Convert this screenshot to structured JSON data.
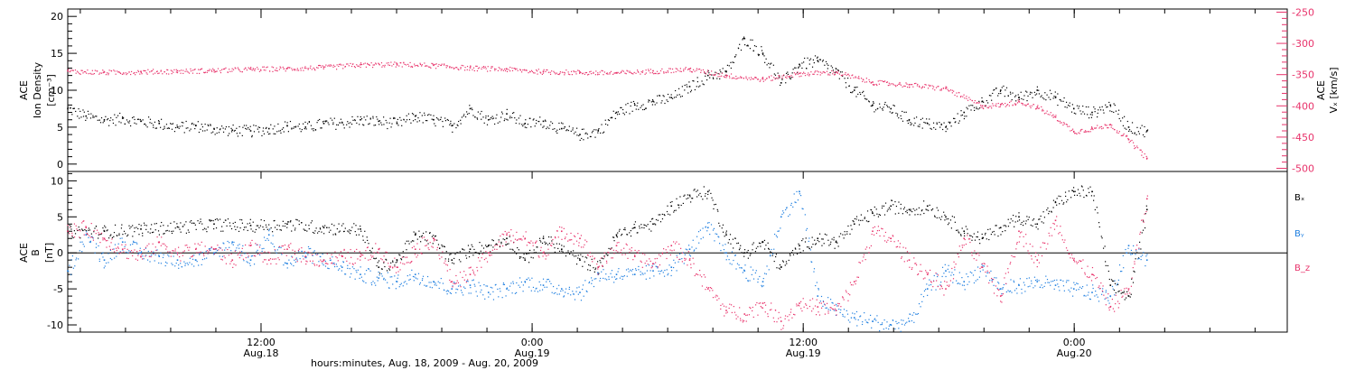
{
  "chart_data": [
    {
      "type": "scatter",
      "panel": "top",
      "ylabel_left": [
        "ACE",
        "Ion Density",
        "[cm⁻³]"
      ],
      "ylabel_right": [
        "ACE",
        "Vₓ [km/s]"
      ],
      "ylim_left": [
        -1,
        21
      ],
      "yticks_left": [
        "0",
        "5",
        "10",
        "15",
        "20"
      ],
      "ylim_right": [
        -505,
        -245
      ],
      "yticks_right": [
        "-250",
        "-300",
        "-350",
        "-400",
        "-450",
        "-500"
      ],
      "series": [
        {
          "axis": "left",
          "color": "#000000",
          "points": [
            [
              0,
              7.5
            ],
            [
              1,
              6.5
            ],
            [
              2,
              6.0
            ],
            [
              3,
              6.2
            ],
            [
              4,
              5.8
            ],
            [
              5,
              5.5
            ],
            [
              6,
              5.0
            ],
            [
              7,
              5.2
            ],
            [
              8,
              4.8
            ],
            [
              9,
              4.6
            ],
            [
              10,
              4.5
            ],
            [
              11,
              4.8
            ],
            [
              12,
              5.2
            ],
            [
              13,
              5.0
            ],
            [
              14,
              5.5
            ],
            [
              15,
              5.6
            ],
            [
              16,
              6.0
            ],
            [
              17,
              5.8
            ],
            [
              18,
              5.5
            ],
            [
              19,
              6.5
            ],
            [
              20,
              6.0
            ],
            [
              21,
              5.2
            ],
            [
              22,
              7.5
            ],
            [
              23,
              6.0
            ],
            [
              24,
              6.8
            ],
            [
              25,
              5.5
            ],
            [
              26,
              5.8
            ],
            [
              27,
              4.8
            ],
            [
              28,
              4.0
            ],
            [
              29,
              4.5
            ],
            [
              30,
              7.0
            ],
            [
              31,
              8.0
            ],
            [
              32,
              8.5
            ],
            [
              33,
              9.0
            ],
            [
              34,
              10.5
            ],
            [
              35,
              12.0
            ],
            [
              36,
              12.5
            ],
            [
              37,
              17.0
            ],
            [
              38,
              15.0
            ],
            [
              39,
              11.0
            ],
            [
              40,
              13.5
            ],
            [
              41,
              14.0
            ],
            [
              42,
              12.5
            ],
            [
              43,
              10.0
            ],
            [
              44,
              8.0
            ],
            [
              45,
              7.5
            ],
            [
              46,
              6.0
            ],
            [
              47,
              5.5
            ],
            [
              48,
              5.0
            ],
            [
              49,
              7.0
            ],
            [
              50,
              8.5
            ],
            [
              51,
              10.0
            ],
            [
              52,
              9.0
            ],
            [
              53,
              10.0
            ],
            [
              54,
              9.0
            ],
            [
              55,
              7.5
            ],
            [
              56,
              7.0
            ],
            [
              57,
              8.0
            ],
            [
              58,
              5.0
            ],
            [
              59,
              4.5
            ]
          ]
        },
        {
          "axis": "right",
          "color": "#e8336b",
          "points": [
            [
              0,
              -344
            ],
            [
              2,
              -346
            ],
            [
              4,
              -345
            ],
            [
              6,
              -344
            ],
            [
              8,
              -343
            ],
            [
              10,
              -341
            ],
            [
              12,
              -340
            ],
            [
              14,
              -338
            ],
            [
              16,
              -334
            ],
            [
              18,
              -333
            ],
            [
              20,
              -335
            ],
            [
              22,
              -339
            ],
            [
              24,
              -341
            ],
            [
              26,
              -345
            ],
            [
              28,
              -346
            ],
            [
              30,
              -347
            ],
            [
              32,
              -344
            ],
            [
              34,
              -341
            ],
            [
              36,
              -351
            ],
            [
              38,
              -357
            ],
            [
              40,
              -348
            ],
            [
              42,
              -346
            ],
            [
              44,
              -362
            ],
            [
              46,
              -366
            ],
            [
              48,
              -372
            ],
            [
              50,
              -400
            ],
            [
              51,
              -398
            ],
            [
              52,
              -393
            ],
            [
              53,
              -402
            ],
            [
              54,
              -418
            ],
            [
              55,
              -441
            ],
            [
              56,
              -436
            ],
            [
              57,
              -430
            ],
            [
              58,
              -454
            ],
            [
              59,
              -484
            ]
          ]
        }
      ]
    },
    {
      "type": "scatter",
      "panel": "bottom",
      "ylabel_left": [
        "ACE",
        "B",
        "[nT]"
      ],
      "ylim_left": [
        -11,
        11.3
      ],
      "yticks_left": [
        "10",
        "5",
        "0",
        "-5",
        "-10"
      ],
      "legend": [
        {
          "text": "Bₓ",
          "color": "#000000"
        },
        {
          "text": "Bᵧ",
          "color": "#1f7fe0"
        },
        {
          "text": "B_z",
          "color": "#e8336b"
        }
      ],
      "series": [
        {
          "name": "Bx",
          "color": "#000000",
          "points": [
            [
              0,
              3.0
            ],
            [
              2,
              3.0
            ],
            [
              4,
              3.3
            ],
            [
              6,
              3.6
            ],
            [
              8,
              4.0
            ],
            [
              10,
              3.8
            ],
            [
              12,
              4.0
            ],
            [
              14,
              3.5
            ],
            [
              16,
              3.3
            ],
            [
              17,
              -2.0
            ],
            [
              18,
              -1.0
            ],
            [
              19,
              2.5
            ],
            [
              20,
              2.0
            ],
            [
              21,
              -1.0
            ],
            [
              22,
              0.5
            ],
            [
              23,
              1.0
            ],
            [
              24,
              2.0
            ],
            [
              25,
              -1.0
            ],
            [
              26,
              2.0
            ],
            [
              27,
              0.5
            ],
            [
              28,
              -1.0
            ],
            [
              29,
              -2.0
            ],
            [
              30,
              2.5
            ],
            [
              31,
              3.5
            ],
            [
              32,
              4.0
            ],
            [
              33,
              6.5
            ],
            [
              34,
              8.0
            ],
            [
              35,
              8.5
            ],
            [
              36,
              2.5
            ],
            [
              37,
              0.0
            ],
            [
              38,
              1.5
            ],
            [
              39,
              -2.0
            ],
            [
              40,
              1.0
            ],
            [
              41,
              2.0
            ],
            [
              42,
              1.5
            ],
            [
              43,
              4.0
            ],
            [
              44,
              5.5
            ],
            [
              45,
              6.5
            ],
            [
              46,
              6.0
            ],
            [
              47,
              6.5
            ],
            [
              48,
              5.0
            ],
            [
              49,
              3.0
            ],
            [
              50,
              2.0
            ],
            [
              51,
              3.5
            ],
            [
              52,
              5.0
            ],
            [
              53,
              4.0
            ],
            [
              54,
              7.0
            ],
            [
              55,
              8.5
            ],
            [
              56,
              8.5
            ],
            [
              57,
              -4.5
            ],
            [
              58,
              -6.0
            ],
            [
              59,
              6.0
            ]
          ]
        },
        {
          "name": "By",
          "color": "#1f7fe0",
          "points": [
            [
              0,
              -2.5
            ],
            [
              1,
              2.5
            ],
            [
              2,
              -1.0
            ],
            [
              3,
              1.5
            ],
            [
              4,
              0.0
            ],
            [
              5,
              -0.5
            ],
            [
              6,
              -1.0
            ],
            [
              7,
              -1.0
            ],
            [
              8,
              0.0
            ],
            [
              9,
              1.5
            ],
            [
              10,
              -1.0
            ],
            [
              11,
              2.5
            ],
            [
              12,
              -1.5
            ],
            [
              13,
              0.0
            ],
            [
              14,
              -1.0
            ],
            [
              15,
              -2.0
            ],
            [
              16,
              -3.0
            ],
            [
              17,
              -3.5
            ],
            [
              18,
              -4.0
            ],
            [
              19,
              -3.0
            ],
            [
              20,
              -4.0
            ],
            [
              21,
              -5.0
            ],
            [
              22,
              -4.5
            ],
            [
              23,
              -5.5
            ],
            [
              24,
              -5.0
            ],
            [
              25,
              -4.0
            ],
            [
              26,
              -4.5
            ],
            [
              27,
              -5.0
            ],
            [
              28,
              -5.5
            ],
            [
              29,
              -3.0
            ],
            [
              30,
              -3.0
            ],
            [
              31,
              -3.0
            ],
            [
              32,
              -2.5
            ],
            [
              33,
              -2.0
            ],
            [
              34,
              0.5
            ],
            [
              35,
              3.5
            ],
            [
              36,
              0.0
            ],
            [
              37,
              -2.5
            ],
            [
              38,
              -4.0
            ],
            [
              39,
              5.0
            ],
            [
              40,
              8.5
            ],
            [
              41,
              -6.0
            ],
            [
              42,
              -8.0
            ],
            [
              43,
              -9.0
            ],
            [
              44,
              -9.5
            ],
            [
              45,
              -10.0
            ],
            [
              46,
              -9.5
            ],
            [
              47,
              -5.0
            ],
            [
              48,
              -2.5
            ],
            [
              49,
              -4.0
            ],
            [
              50,
              -2.0
            ],
            [
              51,
              -5.0
            ],
            [
              52,
              -4.5
            ],
            [
              53,
              -4.0
            ],
            [
              54,
              -4.5
            ],
            [
              55,
              -5.0
            ],
            [
              56,
              -5.5
            ],
            [
              57,
              -6.0
            ],
            [
              58,
              1.0
            ],
            [
              59,
              -1.0
            ]
          ]
        },
        {
          "name": "Bz",
          "color": "#e8336b",
          "points": [
            [
              0,
              3.0
            ],
            [
              1,
              3.5
            ],
            [
              2,
              2.0
            ],
            [
              3,
              0.5
            ],
            [
              4,
              -0.5
            ],
            [
              5,
              1.5
            ],
            [
              6,
              0.0
            ],
            [
              7,
              0.5
            ],
            [
              8,
              0.5
            ],
            [
              9,
              -1.0
            ],
            [
              10,
              1.0
            ],
            [
              11,
              -1.0
            ],
            [
              12,
              0.5
            ],
            [
              13,
              -0.5
            ],
            [
              14,
              -1.0
            ],
            [
              15,
              -0.5
            ],
            [
              16,
              -0.5
            ],
            [
              17,
              0.5
            ],
            [
              18,
              -2.0
            ],
            [
              19,
              0.5
            ],
            [
              20,
              2.0
            ],
            [
              21,
              -4.0
            ],
            [
              22,
              -3.0
            ],
            [
              23,
              0.0
            ],
            [
              24,
              2.5
            ],
            [
              25,
              2.0
            ],
            [
              26,
              0.0
            ],
            [
              27,
              3.0
            ],
            [
              28,
              2.0
            ],
            [
              29,
              -2.0
            ],
            [
              30,
              1.0
            ],
            [
              31,
              -0.5
            ],
            [
              32,
              -1.5
            ],
            [
              33,
              1.0
            ],
            [
              34,
              -1.0
            ],
            [
              35,
              -5.0
            ],
            [
              36,
              -8.0
            ],
            [
              37,
              -8.5
            ],
            [
              38,
              -7.0
            ],
            [
              39,
              -9.5
            ],
            [
              40,
              -7.0
            ],
            [
              41,
              -7.5
            ],
            [
              42,
              -8.0
            ],
            [
              43,
              -4.0
            ],
            [
              44,
              3.0
            ],
            [
              45,
              2.0
            ],
            [
              46,
              -1.0
            ],
            [
              47,
              -3.0
            ],
            [
              48,
              -5.0
            ],
            [
              49,
              2.0
            ],
            [
              50,
              -2.0
            ],
            [
              51,
              -6.0
            ],
            [
              52,
              3.0
            ],
            [
              53,
              -1.0
            ],
            [
              54,
              4.5
            ],
            [
              55,
              -1.0
            ],
            [
              56,
              -3.0
            ],
            [
              57,
              -7.5
            ],
            [
              58,
              -5.0
            ],
            [
              59,
              7.5
            ]
          ]
        }
      ]
    }
  ],
  "x_axis": {
    "ticks": [
      {
        "line1": "12:00",
        "line2": "Aug.18",
        "frac": 0.1585
      },
      {
        "line1": "0:00",
        "line2": "Aug.19",
        "frac": 0.3808
      },
      {
        "line1": "12:00",
        "line2": "Aug.19",
        "frac": 0.6031
      },
      {
        "line1": "0:00",
        "line2": "Aug.20",
        "frac": 0.8253
      }
    ],
    "xlabel": "hours:minutes, Aug. 18, 2009 - Aug. 20, 2009",
    "data_x_range": [
      0,
      59
    ],
    "data_frac_range": [
      0.0,
      0.885
    ]
  }
}
